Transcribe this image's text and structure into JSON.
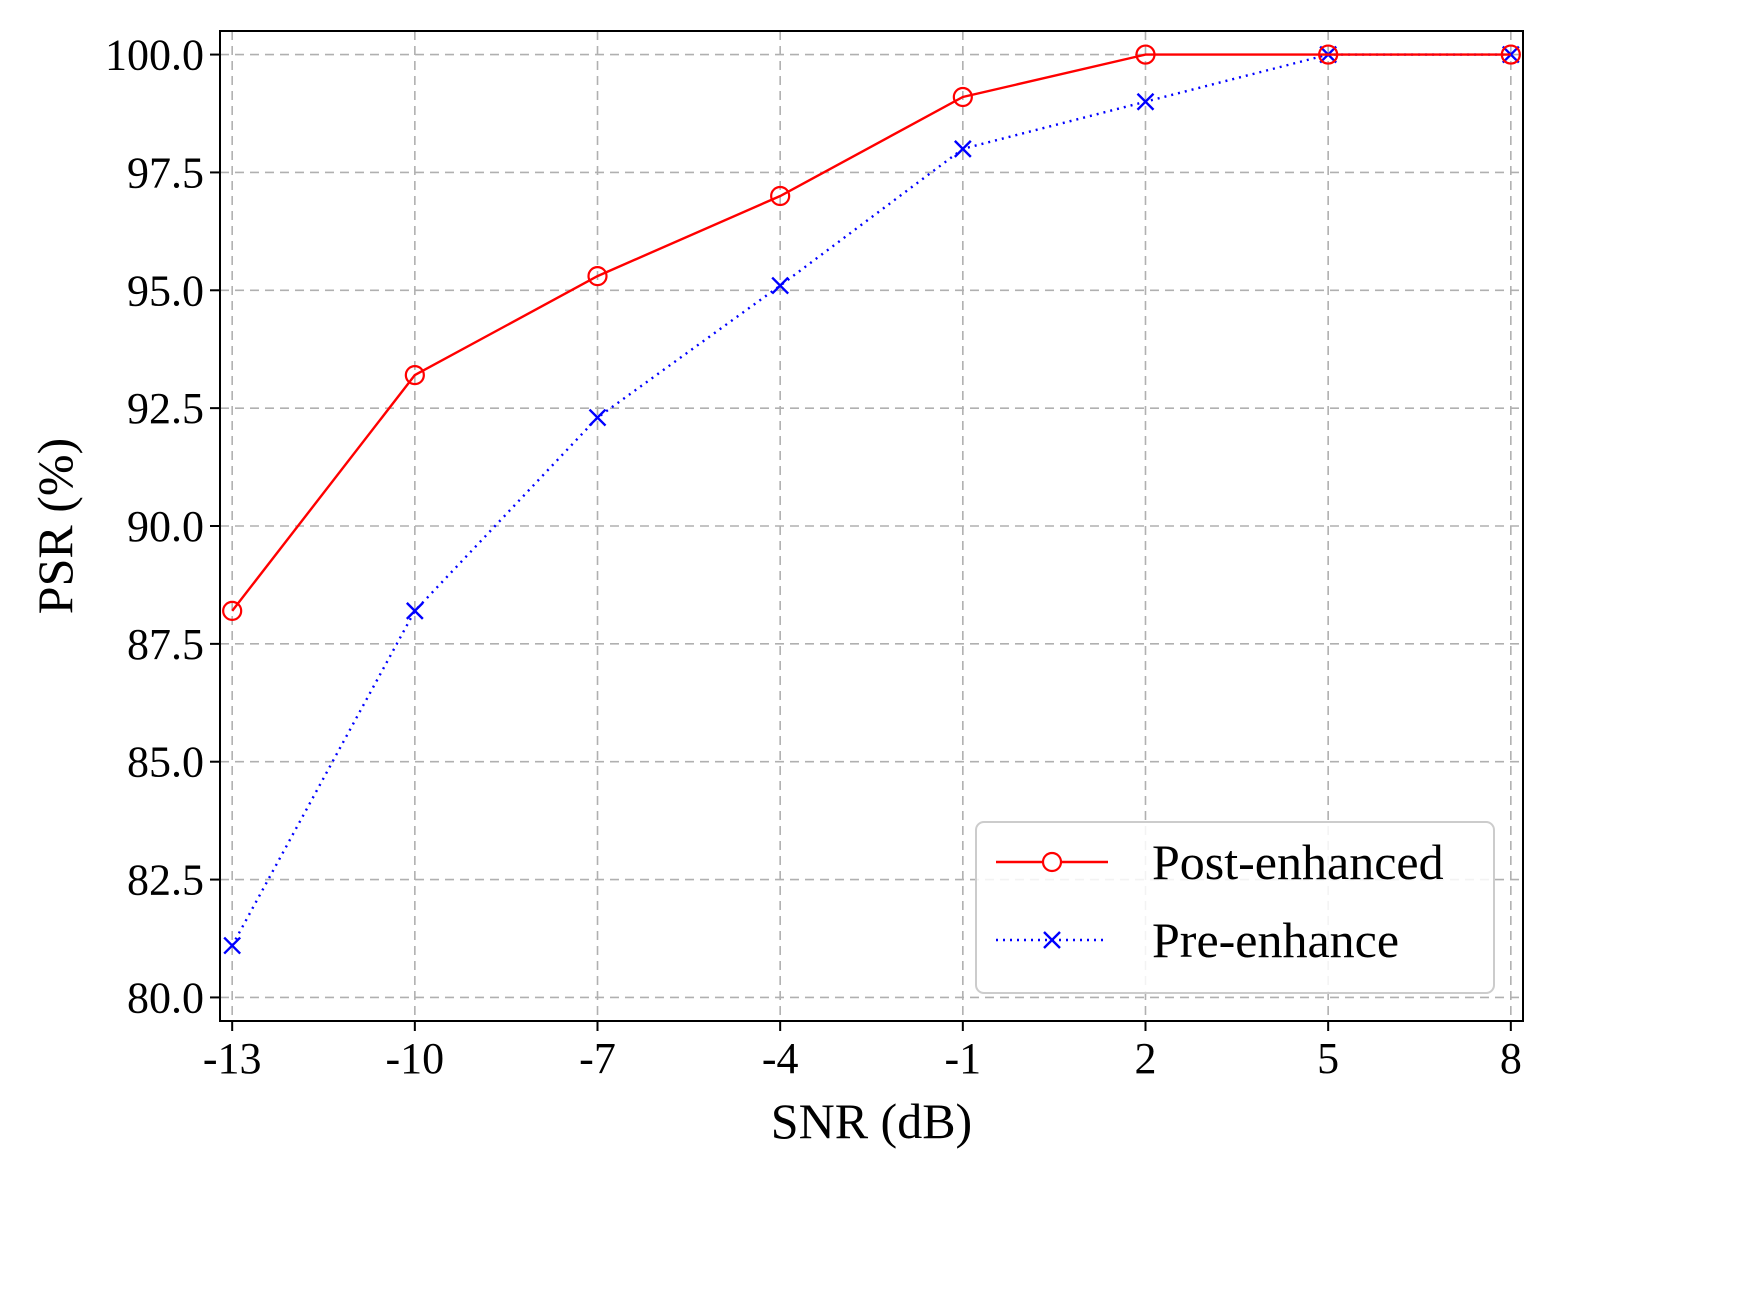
{
  "chart_data": {
    "type": "line",
    "title": "",
    "xlabel": "SNR (dB)",
    "ylabel": "PSR (%)",
    "x": [
      -13,
      -10,
      -7,
      -4,
      -1,
      2,
      5,
      8
    ],
    "x_tick_labels": [
      "-13",
      "-10",
      "-7",
      "-4",
      "-1",
      "2",
      "5",
      "8"
    ],
    "y_tick_values": [
      80.0,
      82.5,
      85.0,
      87.5,
      90.0,
      92.5,
      95.0,
      97.5,
      100.0
    ],
    "y_tick_labels": [
      "80.0",
      "82.5",
      "85.0",
      "87.5",
      "90.0",
      "92.5",
      "95.0",
      "97.5",
      "100.0"
    ],
    "xlim": [
      -13.2,
      8.2
    ],
    "ylim": [
      79.5,
      100.5
    ],
    "grid": true,
    "legend_position": "bottom-right",
    "series": [
      {
        "name": "Post-enhanced",
        "color": "#ff0000",
        "line_style": "solid",
        "marker": "circle-open",
        "values": [
          88.2,
          93.2,
          95.3,
          97.0,
          99.1,
          100.0,
          100.0,
          100.0
        ]
      },
      {
        "name": "Pre-enhance",
        "color": "#0000ff",
        "line_style": "dotted",
        "marker": "x",
        "values": [
          81.1,
          88.2,
          92.3,
          95.1,
          98.0,
          99.0,
          100.0,
          100.0
        ]
      }
    ]
  }
}
